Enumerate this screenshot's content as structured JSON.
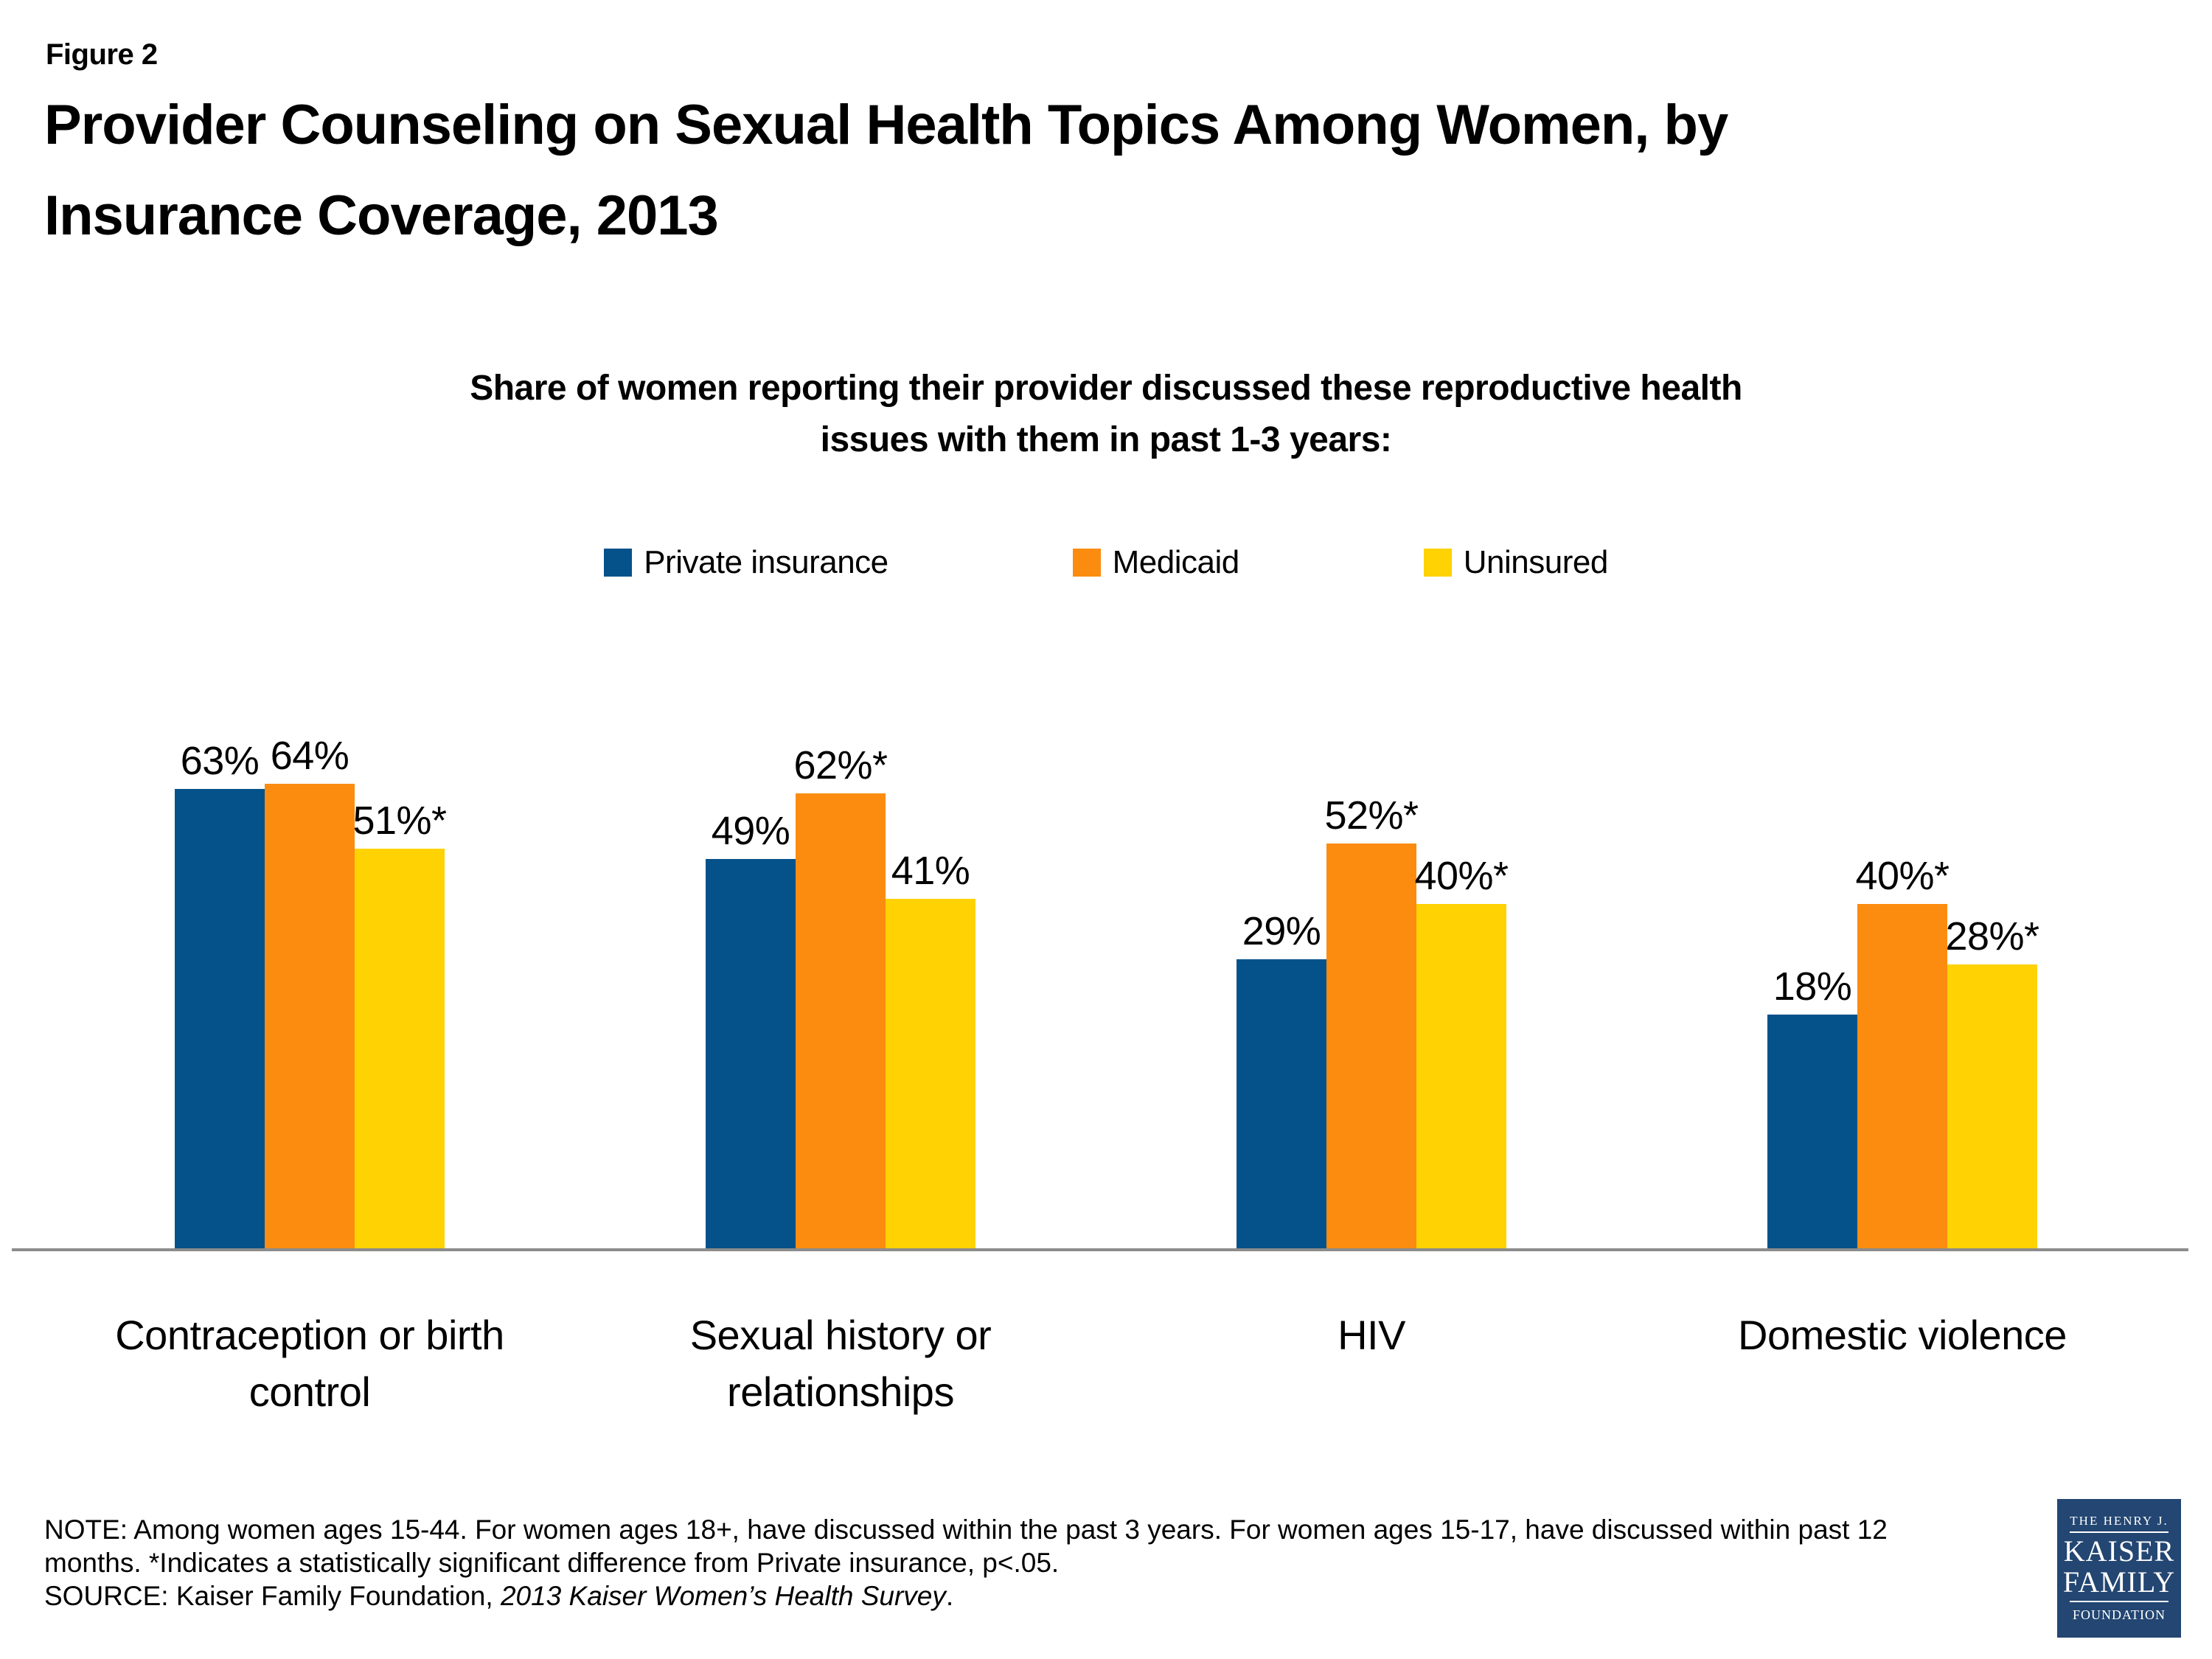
{
  "figure_label": "Figure 2",
  "title": "Provider Counseling on Sexual Health Topics Among Women, by Insurance Coverage, 2013",
  "subtitle": "Share of women reporting their provider discussed these reproductive health issues with them in past 1-3 years:",
  "chart_data": {
    "type": "bar",
    "categories": [
      "Contraception or birth control",
      "Sexual history or relationships",
      "HIV",
      "Domestic violence"
    ],
    "series": [
      {
        "name": "Private insurance",
        "color": "#05528A",
        "values": [
          63,
          49,
          29,
          18
        ],
        "labels": [
          "63%",
          "49%",
          "29%",
          "18%"
        ]
      },
      {
        "name": "Medicaid",
        "color": "#FB8C10",
        "values": [
          64,
          62,
          52,
          40
        ],
        "labels": [
          "64%",
          "62%*",
          "52%*",
          "40%*"
        ]
      },
      {
        "name": "Uninsured",
        "color": "#FFD204",
        "values": [
          51,
          41,
          40,
          28
        ],
        "labels": [
          "51%*",
          "41%",
          "40%*",
          "28%*"
        ]
      }
    ],
    "title": "Share of women reporting their provider discussed these reproductive health issues with them in past 1-3 years:",
    "xlabel": "",
    "ylabel": "",
    "value_unit": "%",
    "grid": false,
    "legend_position": "top",
    "annotations": "* indicates statistically significant difference from Private insurance, p<.05"
  },
  "note": {
    "text": "NOTE: Among women ages 15-44. For women ages 18+, have discussed within the past 3 years. For women ages 15-17, have discussed within past 12 months. *Indicates a statistically significant difference from Private insurance, p<.05."
  },
  "source": {
    "prefix": "SOURCE: Kaiser Family Foundation, ",
    "italic": "2013 Kaiser Women’s Health Survey",
    "suffix": "."
  },
  "logo": {
    "line1": "THE HENRY J.",
    "line2": "KAISER",
    "line3": "FAMILY",
    "line4": "FOUNDATION",
    "bg_color": "#234672"
  },
  "colors": {
    "axis_line": "#8C8C8C",
    "text": "#000000",
    "background": "#FFFFFF"
  }
}
